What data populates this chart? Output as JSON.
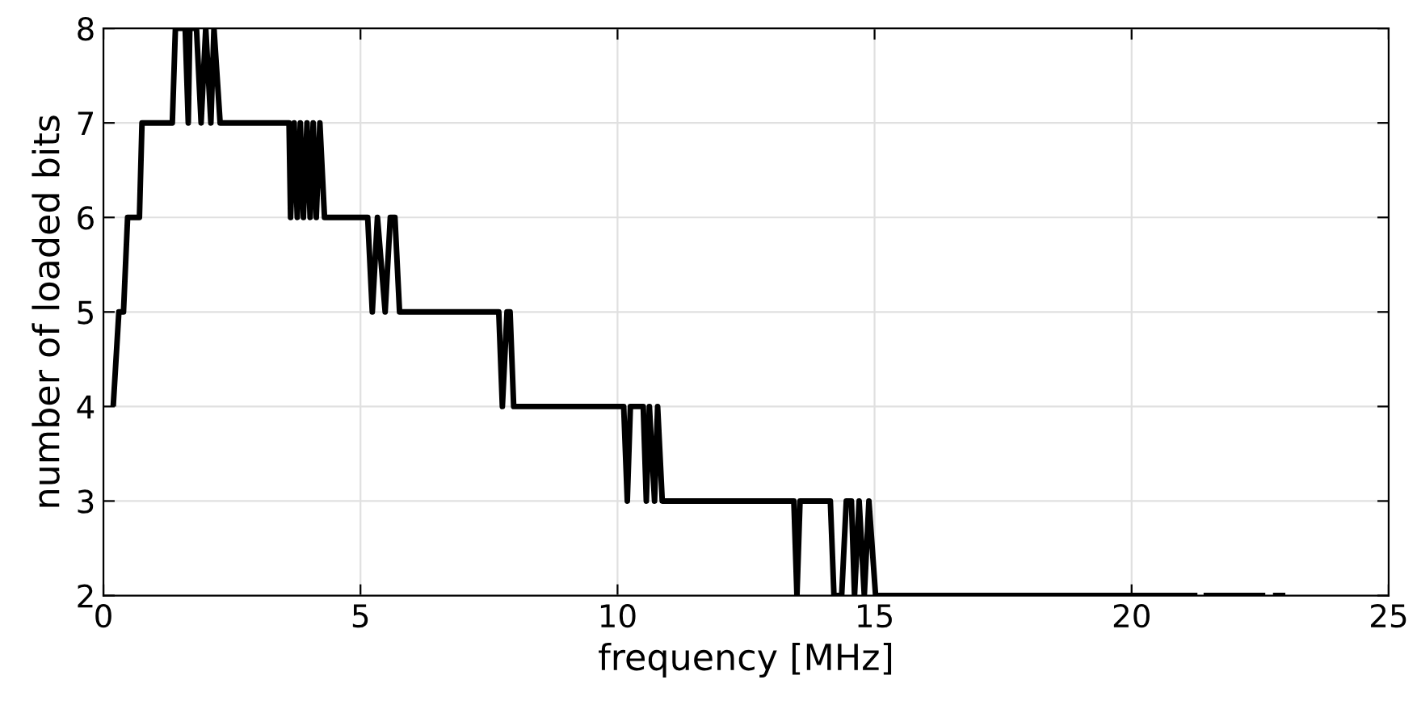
{
  "chart_data": {
    "type": "line",
    "xlabel": "frequency [MHz]",
    "ylabel": "number of loaded bits",
    "xlim": [
      0,
      25
    ],
    "ylim": [
      2,
      8
    ],
    "xticks": [
      0,
      5,
      10,
      15,
      20,
      25
    ],
    "yticks": [
      2,
      3,
      4,
      5,
      6,
      7,
      8
    ],
    "grid": true,
    "line_style": "solid",
    "marker": "none",
    "series": [
      {
        "color": "#000000",
        "x": [
          0.19,
          0.3,
          0.39,
          0.47,
          0.7,
          0.75,
          1.34,
          1.4,
          1.59,
          1.65,
          1.68,
          1.81,
          1.9,
          1.99,
          2.09,
          2.15,
          2.27,
          3.61,
          3.64,
          3.71,
          3.77,
          3.83,
          3.89,
          3.96,
          4.02,
          4.08,
          4.14,
          4.21,
          4.3,
          5.14,
          5.23,
          5.33,
          5.48,
          5.58,
          5.67,
          5.76,
          7.69,
          7.76,
          7.85,
          7.91,
          7.98,
          10.12,
          10.19,
          10.25,
          10.5,
          10.56,
          10.62,
          10.72,
          10.78,
          10.87,
          13.43,
          13.49,
          13.55,
          14.14,
          14.21,
          14.36,
          14.45,
          14.55,
          14.61,
          14.7,
          14.8,
          14.89,
          15.02,
          21.28,
          21.33,
          21.4,
          22.6,
          22.68,
          22.75,
          22.99
        ],
        "values": [
          4,
          5,
          5,
          6,
          6,
          7,
          7,
          8,
          8,
          7,
          8,
          8,
          7,
          8,
          7,
          8,
          7,
          7,
          6,
          7,
          6,
          7,
          6,
          7,
          6,
          7,
          6,
          7,
          6,
          6,
          5,
          6,
          5,
          6,
          6,
          5,
          5,
          4,
          5,
          5,
          4,
          4,
          3,
          4,
          4,
          3,
          4,
          3,
          4,
          3,
          3,
          2,
          3,
          3,
          2,
          2,
          3,
          3,
          2,
          3,
          2,
          3,
          2,
          2,
          null,
          2,
          2,
          null,
          2,
          2
        ]
      }
    ]
  }
}
